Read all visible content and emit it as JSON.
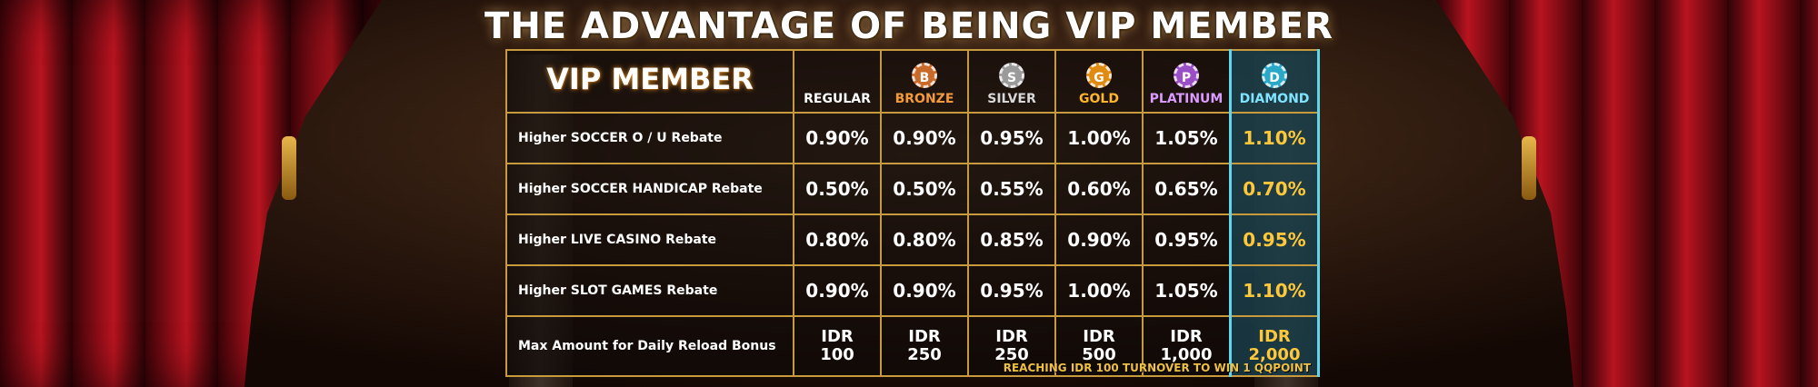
{
  "title": "THE ADVANTAGE OF BEING VIP MEMBER",
  "table": {
    "header_label": "VIP MEMBER",
    "tiers": [
      {
        "name": "REGULAR",
        "chip_letter": "",
        "color": "#ffffff",
        "chip_color": ""
      },
      {
        "name": "BRONZE",
        "chip_letter": "B",
        "color": "#f39a3a",
        "chip_color": "#c9692a"
      },
      {
        "name": "SILVER",
        "chip_letter": "S",
        "color": "#d8d8d8",
        "chip_color": "#9a9a9a"
      },
      {
        "name": "GOLD",
        "chip_letter": "G",
        "color": "#ffb52a",
        "chip_color": "#e08a12"
      },
      {
        "name": "PLATINUM",
        "chip_letter": "P",
        "color": "#d99bff",
        "chip_color": "#9a4fc7"
      },
      {
        "name": "DIAMOND",
        "chip_letter": "D",
        "color": "#7fe4ff",
        "chip_color": "#2aa8c8"
      }
    ],
    "rows": [
      {
        "label": "Higher SOCCER O / U Rebate",
        "values": [
          "0.90%",
          "0.90%",
          "0.95%",
          "1.00%",
          "1.05%",
          "1.10%"
        ]
      },
      {
        "label": "Higher SOCCER HANDICAP Rebate",
        "values": [
          "0.50%",
          "0.50%",
          "0.55%",
          "0.60%",
          "0.65%",
          "0.70%"
        ]
      },
      {
        "label": "Higher LIVE CASINO Rebate",
        "values": [
          "0.80%",
          "0.80%",
          "0.85%",
          "0.90%",
          "0.95%",
          "0.95%"
        ]
      },
      {
        "label": "Higher SLOT GAMES Rebate",
        "values": [
          "0.90%",
          "0.90%",
          "0.95%",
          "1.00%",
          "1.05%",
          "1.10%"
        ]
      }
    ],
    "reload_row": {
      "label": "Max Amount for Daily Reload Bonus",
      "currency": "IDR",
      "values": [
        "100",
        "250",
        "250",
        "500",
        "1,000",
        "2,000"
      ]
    }
  },
  "footer_note": "REACHING IDR 100 TURNOVER TO WIN 1 QQPOINT"
}
